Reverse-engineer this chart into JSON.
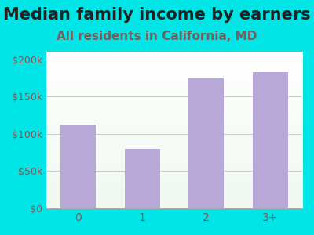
{
  "title": "Median family income by earners",
  "subtitle": "All residents in California, MD",
  "categories": [
    "0",
    "1",
    "2",
    "3+"
  ],
  "values": [
    112000,
    80000,
    175000,
    183000
  ],
  "bar_color": "#b8a8d8",
  "background_color": "#00e5e5",
  "title_fontsize": 15,
  "subtitle_fontsize": 11,
  "yticks": [
    0,
    50000,
    100000,
    150000,
    200000
  ],
  "ytick_labels": [
    "$0",
    "$50k",
    "$100k",
    "$150k",
    "$200k"
  ],
  "ylim": [
    0,
    210000
  ],
  "title_color": "#222222",
  "subtitle_color": "#7a5c5c",
  "tick_color": "#7a5c5c",
  "grid_color": "#cccccc"
}
